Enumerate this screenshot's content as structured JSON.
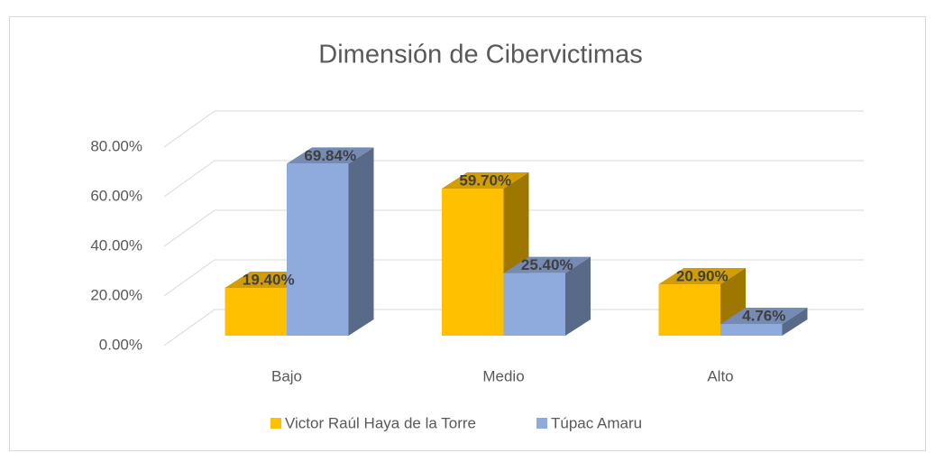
{
  "chart_data": {
    "type": "bar3d",
    "title": "Dimensión de Cibervictimas",
    "categories": [
      "Bajo",
      "Medio",
      "Alto"
    ],
    "series": [
      {
        "name": "Victor Raúl Haya de la Torre",
        "color": "#FFC000",
        "values": [
          19.4,
          59.7,
          20.9
        ],
        "value_labels": [
          "19.40%",
          "59.70%",
          "20.90%"
        ]
      },
      {
        "name": "Túpac Amaru",
        "color": "#8FAADC",
        "values": [
          69.84,
          25.4,
          4.76
        ],
        "value_labels": [
          "69.84%",
          "25.40%",
          "4.76%"
        ]
      }
    ],
    "ylim": [
      0,
      80
    ],
    "yticks": [
      {
        "value": 0,
        "label": "0.00%"
      },
      {
        "value": 20,
        "label": "20.00%"
      },
      {
        "value": 40,
        "label": "40.00%"
      },
      {
        "value": 60,
        "label": "60.00%"
      },
      {
        "value": 80,
        "label": "80.00%"
      }
    ],
    "grid": true,
    "legend": "bottom"
  }
}
